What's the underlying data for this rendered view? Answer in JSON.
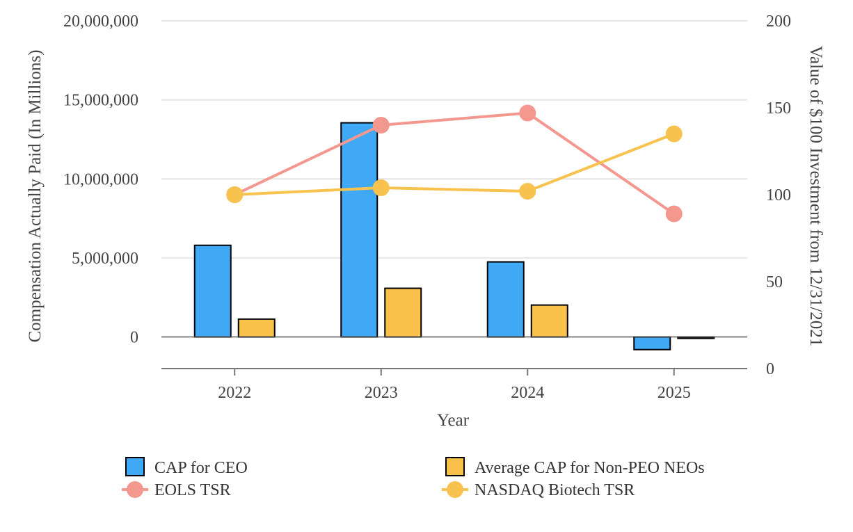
{
  "chart_data": {
    "type": "bar",
    "categories": [
      "2022",
      "2023",
      "2024",
      "2025"
    ],
    "xlabel": "Year",
    "ylabel": "Compensation Actually Paid (In Millions)",
    "y2label": "Value of $100 Investment from 12/31/2021",
    "ylim": [
      -2000000,
      20000000
    ],
    "yticks": [
      0,
      5000000,
      10000000,
      15000000,
      20000000
    ],
    "ytick_labels": [
      "0",
      "5,000,000",
      "10,000,000",
      "15,000,000",
      "20,000,000"
    ],
    "y2lim": [
      0,
      200
    ],
    "y2ticks": [
      0,
      50,
      100,
      150,
      200
    ],
    "y2tick_labels": [
      "0",
      "50",
      "100",
      "150",
      "200"
    ],
    "grid": true,
    "legend_position": "bottom",
    "series": [
      {
        "name": "CAP for CEO",
        "type": "bar",
        "axis": "left",
        "color": "#3fa9f5",
        "values": [
          5800000,
          13550000,
          4750000,
          -800000
        ]
      },
      {
        "name": "Average CAP for Non-PEO NEOs",
        "type": "bar",
        "axis": "left",
        "color": "#f9c04a",
        "values": [
          1130000,
          3080000,
          2020000,
          -60000
        ]
      },
      {
        "name": "EOLS TSR",
        "type": "line",
        "axis": "right",
        "color": "#f4978e",
        "values": [
          100,
          140,
          147,
          89
        ]
      },
      {
        "name": "NASDAQ Biotech TSR",
        "type": "line",
        "axis": "right",
        "color": "#f7c24d",
        "values": [
          100,
          104,
          102,
          135
        ]
      }
    ]
  }
}
